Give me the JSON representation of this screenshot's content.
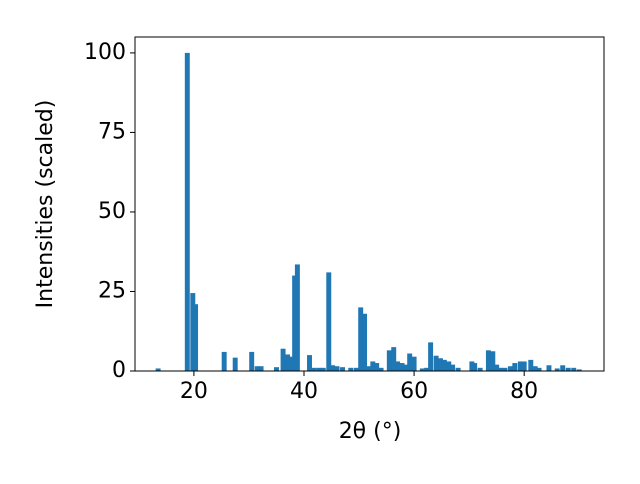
{
  "chart_data": {
    "type": "bar",
    "xlabel": "2θ (°)",
    "ylabel": "Intensities (scaled)",
    "x": [
      13.5,
      18.8,
      19.8,
      20.3,
      25.5,
      27.5,
      30.5,
      31.5,
      32.2,
      35,
      36.2,
      37,
      37.7,
      38.3,
      38.8,
      41,
      41.8,
      42.7,
      43.5,
      44.5,
      45.2,
      46,
      47,
      48.5,
      49.5,
      50.3,
      51,
      51.8,
      52.5,
      53.2,
      54,
      55.5,
      56.3,
      57,
      57.8,
      58.5,
      59.2,
      60,
      61.5,
      62.3,
      63,
      64,
      64.8,
      65.5,
      66.3,
      67,
      68,
      70.5,
      71,
      72,
      73.5,
      74.3,
      75,
      75.7,
      76.5,
      77.5,
      78.3,
      79.3,
      80,
      81.2,
      82,
      82.7,
      84.5,
      86,
      87,
      88,
      89,
      90
    ],
    "values": [
      0.8,
      100,
      24.5,
      21,
      6,
      4.2,
      6,
      1.5,
      1.5,
      1.2,
      7,
      5.2,
      4.5,
      30,
      33.5,
      5,
      1,
      1,
      1,
      31,
      1.8,
      1.5,
      1.2,
      1,
      1,
      20,
      18,
      1.5,
      3,
      2.5,
      1,
      6.5,
      7.5,
      3,
      2.5,
      2,
      5.5,
      4.5,
      0.8,
      1,
      9,
      4.8,
      4,
      3.5,
      3,
      2,
      1,
      3,
      2.5,
      1,
      6.5,
      6.2,
      2,
      1,
      1,
      1.5,
      2.5,
      3,
      3,
      3.5,
      1.5,
      1,
      1.8,
      0.8,
      1.8,
      1,
      1,
      0.5
    ],
    "color": "#1f77b4",
    "xlim": [
      9.3,
      94.5
    ],
    "xticks": [
      20,
      40,
      60,
      80
    ],
    "ylim": [
      0,
      105
    ],
    "yticks": [
      0,
      25,
      50,
      75,
      100
    ]
  }
}
